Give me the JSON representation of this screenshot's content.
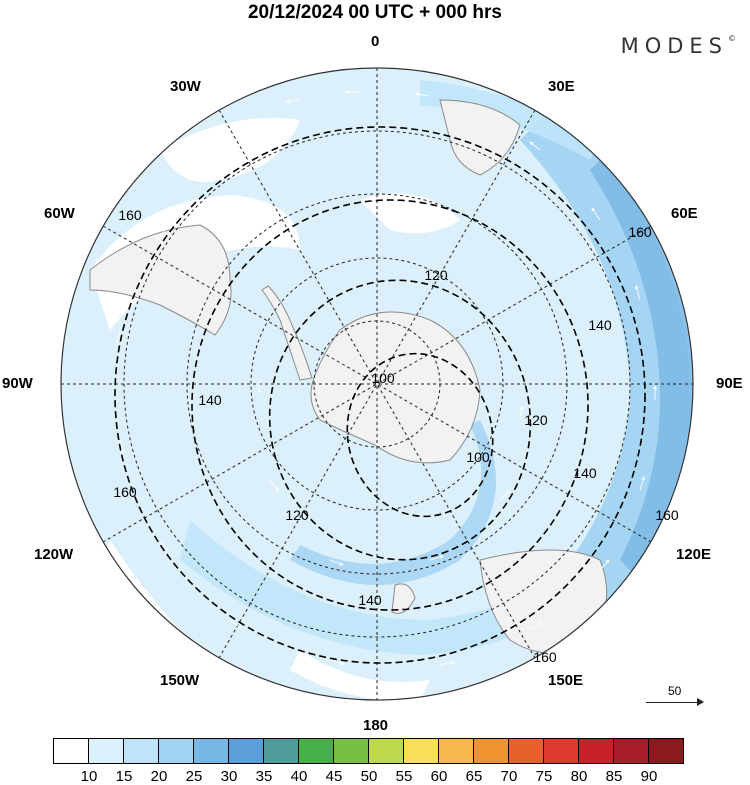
{
  "title": "20/12/2024  00 UTC  + 000 hrs",
  "brand": "MODES",
  "brand_mark": "©",
  "longitude_labels": {
    "l0": "0",
    "l30e": "30E",
    "l60e": "60E",
    "l90e": "90E",
    "l120e": "120E",
    "l150e": "150E",
    "l180": "180",
    "l150w": "150W",
    "l120w": "120W",
    "l90w": "90W",
    "l60w": "60W",
    "l30w": "30W"
  },
  "contour_labels": [
    "100",
    "100",
    "120",
    "120",
    "120",
    "140",
    "140",
    "140",
    "140",
    "160",
    "160",
    "160",
    "160",
    "160"
  ],
  "reference_vector": "50",
  "colorbar": {
    "ticks": [
      "10",
      "15",
      "20",
      "25",
      "30",
      "35",
      "40",
      "45",
      "50",
      "55",
      "60",
      "65",
      "70",
      "75",
      "80",
      "85",
      "90"
    ],
    "colors": [
      "#ffffff",
      "#dcf0fc",
      "#bfe4f9",
      "#a0d2f2",
      "#78b6e4",
      "#5a9fd7",
      "#4f9d98",
      "#47b04a",
      "#77c043",
      "#bcd84b",
      "#f7df5c",
      "#f6b84a",
      "#f0922d",
      "#e8612c",
      "#dc3a2c",
      "#c9202c",
      "#a61c2a",
      "#8a1a1e"
    ]
  },
  "map_colors": {
    "ocean_light": "#dcf0fc",
    "band_mid": "#bfe4f9",
    "band_strong": "#a0d2f2",
    "band_max": "#78b6e4",
    "land": "#f2f2f2",
    "coast": "#8a8a8a"
  }
}
